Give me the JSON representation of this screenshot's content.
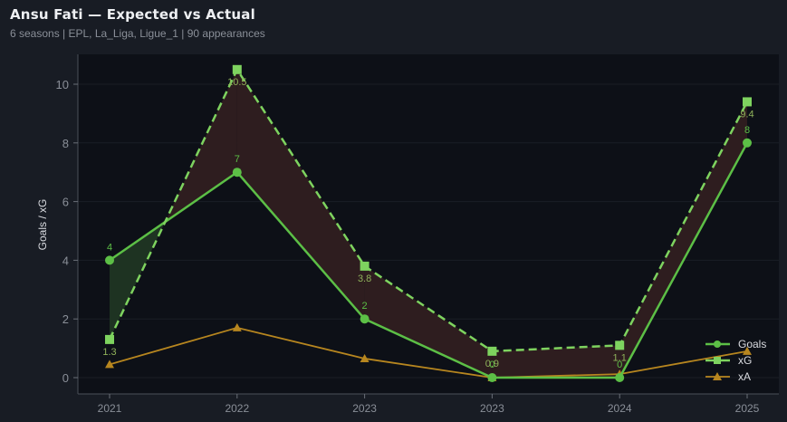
{
  "header": {
    "title": "Ansu Fati — Expected vs Actual",
    "subtitle": "6 seasons | EPL, La_Liga, Ligue_1 | 90 appearances"
  },
  "colors": {
    "background": "#181c24",
    "plot_bg": "#0d1017",
    "goals": "#5cbf46",
    "xg": "#7ed35f",
    "xa": "#b7861f",
    "overperf_fill": "#1e3322",
    "underperf_fill": "#2e1d1f"
  },
  "chart_data": {
    "type": "line",
    "title": "Ansu Fati — Expected vs Actual",
    "subtitle": "6 seasons | EPL, La_Liga, Ligue_1 | 90 appearances",
    "xlabel": "",
    "ylabel": "Goals / xG",
    "categories": [
      "2021",
      "2022",
      "2023",
      "2023",
      "2024",
      "2025"
    ],
    "ylim": [
      -0.5,
      11
    ],
    "yticks": [
      0,
      2,
      4,
      6,
      8,
      10
    ],
    "grid": true,
    "legend_position": "lower right",
    "series": [
      {
        "name": "Goals",
        "values": [
          4,
          7,
          2,
          0,
          0,
          8
        ],
        "style": "solid",
        "marker": "circle",
        "labels": [
          "4",
          "7",
          "2",
          "0",
          "0",
          "8"
        ]
      },
      {
        "name": "xG",
        "values": [
          1.3,
          10.5,
          3.8,
          0.9,
          1.1,
          9.4
        ],
        "style": "dashed",
        "marker": "square",
        "labels": [
          "1.3",
          "10.5",
          "3.8",
          "0.9",
          "1.1",
          "9.4"
        ]
      },
      {
        "name": "xA",
        "values": [
          0.45,
          1.7,
          0.65,
          0.0,
          0.12,
          0.9
        ],
        "style": "solid",
        "marker": "triangle"
      }
    ],
    "annotations": [
      "Shaded area between Goals and xG: green where Goals > xG, dark red where xG > Goals"
    ]
  },
  "legend": {
    "goals": "Goals",
    "xg": "xG",
    "xa": "xA"
  }
}
